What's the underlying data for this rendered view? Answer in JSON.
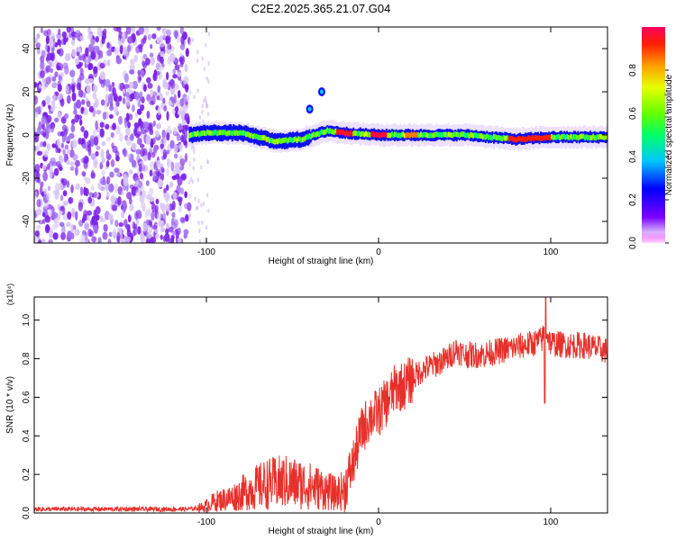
{
  "title": "C2E2.2025.365.21.07.G04",
  "chart_data": [
    {
      "type": "heatmap",
      "xlabel": "Height of straight line (km)",
      "ylabel": "Frequency (Hz)",
      "xlim": [
        -200,
        133
      ],
      "ylim": [
        -50,
        50
      ],
      "xticks": [
        -100,
        0,
        100
      ],
      "yticks": [
        -40,
        -20,
        0,
        20,
        40
      ],
      "colorbar": {
        "label": "Normalized spectral amplitude",
        "range": [
          0,
          1
        ],
        "ticks": [
          "0.0",
          "0.2",
          "0.4",
          "0.6",
          "0.8"
        ]
      },
      "description_points": {
        "noise_region_x": [
          -200,
          -110
        ],
        "signal_track": [
          {
            "x": -110,
            "f": 0
          },
          {
            "x": -100,
            "f": 1
          },
          {
            "x": -80,
            "f": 1
          },
          {
            "x": -60,
            "f": -3
          },
          {
            "x": -45,
            "f": -2
          },
          {
            "x": -30,
            "f": 2
          },
          {
            "x": -20,
            "f": 1
          },
          {
            "x": 0,
            "f": 0
          },
          {
            "x": 20,
            "f": 0
          },
          {
            "x": 50,
            "f": 0
          },
          {
            "x": 80,
            "f": -2
          },
          {
            "x": 100,
            "f": -1
          },
          {
            "x": 133,
            "f": -1
          }
        ],
        "secondary_features": [
          {
            "x": -40,
            "f": 12
          },
          {
            "x": -33,
            "f": 20
          }
        ]
      }
    },
    {
      "type": "line",
      "xlabel": "Height of straight line (km)",
      "ylabel": "SNR (10 * v/v)",
      "ylabel_scale": "(x10⁴)",
      "xlim": [
        -200,
        133
      ],
      "ylim": [
        0,
        1.12
      ],
      "xticks": [
        -100,
        0,
        100
      ],
      "yticks": [
        0.0,
        0.2,
        0.4,
        0.6,
        0.8,
        1.0
      ],
      "series": [
        {
          "name": "SNR",
          "color": "#e8302a",
          "x": [
            -200,
            -180,
            -160,
            -140,
            -120,
            -110,
            -102,
            -95,
            -85,
            -75,
            -65,
            -55,
            -45,
            -35,
            -25,
            -20,
            -15,
            -10,
            -5,
            0,
            5,
            10,
            15,
            20,
            25,
            30,
            40,
            45,
            50,
            60,
            70,
            80,
            90,
            95,
            97,
            100,
            110,
            120,
            133
          ],
          "y": [
            0.02,
            0.02,
            0.02,
            0.02,
            0.02,
            0.02,
            0.03,
            0.06,
            0.08,
            0.12,
            0.15,
            0.16,
            0.15,
            0.13,
            0.1,
            0.12,
            0.25,
            0.42,
            0.5,
            0.52,
            0.58,
            0.65,
            0.66,
            0.7,
            0.74,
            0.76,
            0.8,
            0.85,
            0.82,
            0.82,
            0.84,
            0.86,
            0.88,
            0.9,
            0.95,
            0.88,
            0.87,
            0.87,
            0.84
          ]
        }
      ]
    }
  ]
}
